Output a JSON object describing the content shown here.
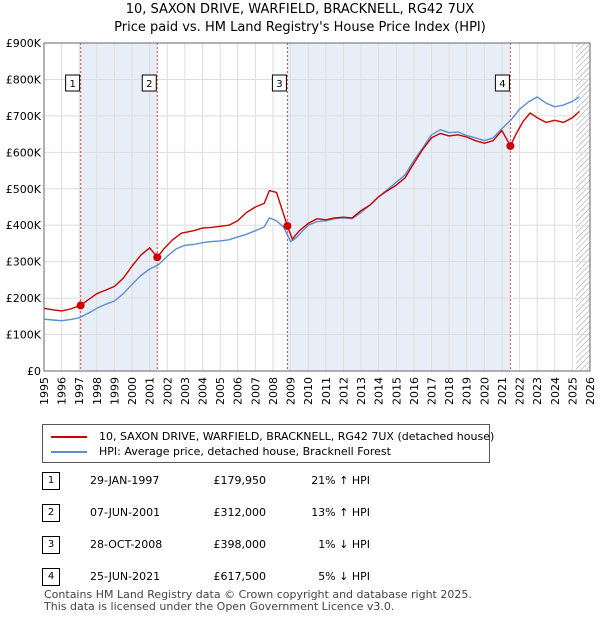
{
  "title_line1": "10, SAXON DRIVE, WARFIELD, BRACKNELL, RG42 7UX",
  "title_line2": "Price paid vs. HM Land Registry's House Price Index (HPI)",
  "chart_data": {
    "type": "line",
    "xlim": [
      1995,
      2026
    ],
    "ylim": [
      0,
      900000
    ],
    "y_ticks": [
      0,
      100000,
      200000,
      300000,
      400000,
      500000,
      600000,
      700000,
      800000,
      900000
    ],
    "y_tick_labels": [
      "£0",
      "£100K",
      "£200K",
      "£300K",
      "£400K",
      "£500K",
      "£600K",
      "£700K",
      "£800K",
      "£900K"
    ],
    "x_ticks": [
      1995,
      1996,
      1997,
      1998,
      1999,
      2000,
      2001,
      2002,
      2003,
      2004,
      2005,
      2006,
      2007,
      2008,
      2009,
      2010,
      2011,
      2012,
      2013,
      2014,
      2015,
      2016,
      2017,
      2018,
      2019,
      2020,
      2021,
      2022,
      2023,
      2024,
      2025,
      2026
    ],
    "x_tick_labels": [
      "1995",
      "1996",
      "1997",
      "1998",
      "1999",
      "2000",
      "2001",
      "2002",
      "2003",
      "2004",
      "2005",
      "2006",
      "2007",
      "2008",
      "2009",
      "2010",
      "2011",
      "2012",
      "2013",
      "2014",
      "2015",
      "2016",
      "2017",
      "2018",
      "2019",
      "2020",
      "2021",
      "2022",
      "2023",
      "2024",
      "2025",
      "2026"
    ],
    "grid": true,
    "series": [
      {
        "name": "10, SAXON DRIVE, WARFIELD, BRACKNELL, RG42 7UX (detached house)",
        "color": "#cc0000",
        "x": [
          1995.0,
          1995.5,
          1996.0,
          1996.5,
          1997.08,
          1997.5,
          1998.0,
          1998.5,
          1999.0,
          1999.5,
          2000.0,
          2000.5,
          2001.0,
          2001.43,
          2001.8,
          2002.3,
          2002.8,
          2003.5,
          2004.0,
          2004.5,
          2005.0,
          2005.5,
          2006.0,
          2006.5,
          2007.0,
          2007.5,
          2007.8,
          2008.2,
          2008.82,
          2009.1,
          2009.5,
          2010.0,
          2010.5,
          2011.0,
          2011.5,
          2012.0,
          2012.5,
          2013.0,
          2013.5,
          2014.0,
          2014.5,
          2015.0,
          2015.5,
          2016.0,
          2016.5,
          2017.0,
          2017.5,
          2018.0,
          2018.5,
          2019.0,
          2019.5,
          2020.0,
          2020.5,
          2021.0,
          2021.48,
          2021.8,
          2022.2,
          2022.6,
          2023.0,
          2023.5,
          2024.0,
          2024.5,
          2025.0,
          2025.4
        ],
        "y": [
          172000,
          168000,
          165000,
          170000,
          179950,
          195000,
          212000,
          222000,
          232000,
          255000,
          288000,
          318000,
          338000,
          312000,
          335000,
          360000,
          378000,
          385000,
          392000,
          394000,
          397000,
          400000,
          412000,
          435000,
          450000,
          460000,
          495000,
          490000,
          398000,
          362000,
          385000,
          405000,
          418000,
          415000,
          420000,
          422000,
          420000,
          440000,
          455000,
          478000,
          495000,
          510000,
          530000,
          570000,
          608000,
          640000,
          652000,
          645000,
          648000,
          642000,
          632000,
          625000,
          632000,
          660000,
          617500,
          650000,
          685000,
          708000,
          695000,
          682000,
          688000,
          682000,
          695000,
          712000
        ]
      },
      {
        "name": "HPI: Average price, detached house, Bracknell Forest",
        "color": "#5b8fd0",
        "x": [
          1995.0,
          1995.5,
          1996.0,
          1996.5,
          1997.0,
          1997.5,
          1998.0,
          1998.5,
          1999.0,
          1999.5,
          2000.0,
          2000.5,
          2001.0,
          2001.5,
          2002.0,
          2002.5,
          2003.0,
          2003.5,
          2004.0,
          2004.5,
          2005.0,
          2005.5,
          2006.0,
          2006.5,
          2007.0,
          2007.5,
          2007.8,
          2008.2,
          2008.6,
          2009.0,
          2009.3,
          2009.7,
          2010.0,
          2010.5,
          2011.0,
          2011.5,
          2012.0,
          2012.5,
          2013.0,
          2013.5,
          2014.0,
          2014.5,
          2015.0,
          2015.5,
          2016.0,
          2016.5,
          2017.0,
          2017.5,
          2018.0,
          2018.5,
          2019.0,
          2019.5,
          2020.0,
          2020.5,
          2021.0,
          2021.5,
          2022.0,
          2022.5,
          2023.0,
          2023.5,
          2024.0,
          2024.5,
          2025.0,
          2025.4
        ],
        "y": [
          142000,
          140000,
          138000,
          141000,
          146000,
          158000,
          172000,
          183000,
          192000,
          212000,
          238000,
          262000,
          280000,
          292000,
          315000,
          335000,
          345000,
          347000,
          352000,
          355000,
          357000,
          360000,
          368000,
          375000,
          385000,
          395000,
          420000,
          412000,
          395000,
          355000,
          365000,
          385000,
          400000,
          410000,
          412000,
          418000,
          420000,
          418000,
          435000,
          455000,
          478000,
          498000,
          518000,
          538000,
          578000,
          612000,
          648000,
          662000,
          654000,
          656000,
          646000,
          640000,
          632000,
          640000,
          665000,
          688000,
          718000,
          738000,
          752000,
          735000,
          725000,
          730000,
          740000,
          752000
        ]
      }
    ],
    "sales": [
      {
        "label": "1",
        "x": 1997.08,
        "price": 179950
      },
      {
        "label": "2",
        "x": 2001.43,
        "price": 312000
      },
      {
        "label": "3",
        "x": 2008.82,
        "price": 398000
      },
      {
        "label": "4",
        "x": 2021.48,
        "price": 617500
      }
    ],
    "shaded_periods": [
      [
        1997.08,
        2001.43
      ],
      [
        2008.82,
        2021.48
      ]
    ],
    "hatch_from": 2025.2
  },
  "legend": {
    "red_label": "10, SAXON DRIVE, WARFIELD, BRACKNELL, RG42 7UX (detached house)",
    "blue_label": "HPI: Average price, detached house, Bracknell Forest"
  },
  "sales_table": [
    {
      "num": "1",
      "date": "29-JAN-1997",
      "price": "£179,950",
      "hpi": "21% ↑ HPI"
    },
    {
      "num": "2",
      "date": "07-JUN-2001",
      "price": "£312,000",
      "hpi": "13% ↑ HPI"
    },
    {
      "num": "3",
      "date": "28-OCT-2008",
      "price": "£398,000",
      "hpi": "1% ↓ HPI"
    },
    {
      "num": "4",
      "date": "25-JUN-2021",
      "price": "£617,500",
      "hpi": "5% ↓ HPI"
    }
  ],
  "footer": {
    "line1": "Contains HM Land Registry data © Crown copyright and database right 2025.",
    "line2": "This data is licensed under the Open Government Licence v3.0."
  }
}
